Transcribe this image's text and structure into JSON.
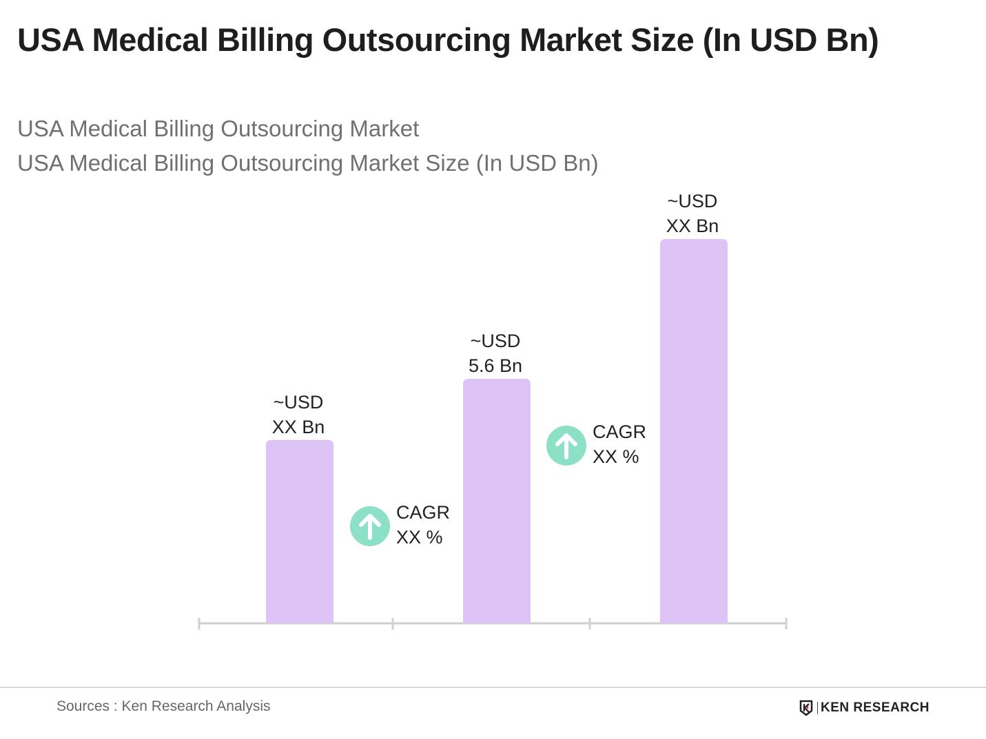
{
  "title": "USA Medical Billing Outsourcing Market Size (In USD Bn)",
  "subtitle_1": "USA Medical Billing Outsourcing Market",
  "subtitle_2": "USA Medical Billing Outsourcing Market Size (In USD Bn)",
  "chart_data": {
    "type": "bar",
    "title": "USA Medical Billing Outsourcing Market Size (In USD Bn)",
    "categories": [
      "",
      "",
      ""
    ],
    "values": [
      4.2,
      5.6,
      8.8
    ],
    "data_labels": [
      {
        "line1": "~USD",
        "line2": "XX Bn"
      },
      {
        "line1": "~USD",
        "line2": "5.6 Bn"
      },
      {
        "line1": "~USD",
        "line2": "XX Bn"
      }
    ],
    "annotations": [
      {
        "line1": "CAGR",
        "line2": "XX %",
        "icon": "arrow-up-circle-icon"
      },
      {
        "line1": "CAGR",
        "line2": "XX %",
        "icon": "arrow-up-circle-icon"
      }
    ],
    "ylim": [
      0,
      9.5
    ],
    "grid": false,
    "bar_color": "#dec3f7",
    "cagr_color": "#8ce0c6",
    "axis_color": "#d0d0d0"
  },
  "footer": {
    "source": "Sources : Ken Research Analysis",
    "logo": "KEN RESEARCH"
  }
}
